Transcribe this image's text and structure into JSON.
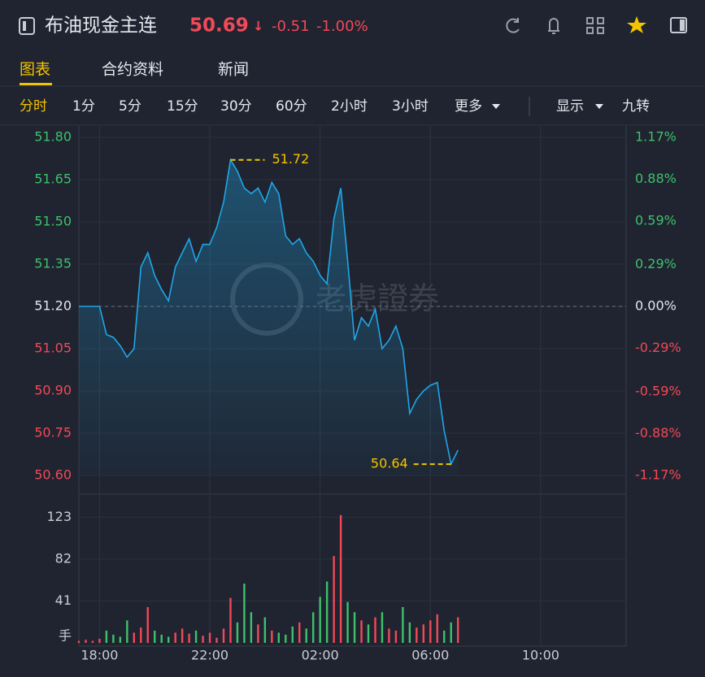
{
  "header": {
    "title": "布油现金主连",
    "price": "50.69",
    "arrow": "↓",
    "change": "-0.51",
    "change_pct": "-1.00%"
  },
  "tabs": [
    "图表",
    "合约资料",
    "新闻"
  ],
  "periods": [
    "分时",
    "1分",
    "5分",
    "15分",
    "30分",
    "60分",
    "2小时",
    "3小时",
    "更多"
  ],
  "toolbar_right": [
    "显示",
    "九转"
  ],
  "watermark": "老虎證券",
  "chart_data": [
    {
      "type": "line",
      "x": [
        -0.75,
        -0.5,
        -0.25,
        0,
        0.25,
        0.5,
        0.75,
        1,
        1.25,
        1.5,
        1.75,
        2,
        2.25,
        2.5,
        2.75,
        3,
        3.25,
        3.5,
        3.75,
        4,
        4.25,
        4.5,
        4.75,
        5,
        5.25,
        5.5,
        5.75,
        6,
        6.25,
        6.5,
        6.75,
        7,
        7.25,
        7.5,
        7.75,
        8,
        8.25,
        8.5,
        8.75,
        9,
        9.25,
        9.5,
        9.75,
        10,
        10.25,
        10.5,
        10.75,
        11,
        11.25,
        11.5,
        11.75,
        12,
        12.25,
        12.5,
        12.75,
        13
      ],
      "xlim": [
        -0.75,
        19.1
      ],
      "ylim": [
        50.6,
        51.8
      ],
      "yticks": [
        {
          "value": 51.8,
          "label": "51.80"
        },
        51.65,
        {
          "value": 51.5,
          "label": "51.50"
        },
        51.35,
        {
          "value": 51.2,
          "label": "51.20"
        },
        51.05,
        {
          "value": 50.9,
          "label": "50.90"
        },
        50.75,
        {
          "value": 50.6,
          "label": "50.60"
        }
      ],
      "y2lim": [
        -1.17,
        1.17
      ],
      "y2ticks": [
        {
          "value": 1.17,
          "label": "1.17%"
        },
        {
          "value": 0.88,
          "label": "0.88%"
        },
        {
          "value": 0.59,
          "label": "0.59%"
        },
        {
          "value": 0.29,
          "label": "0.29%"
        },
        {
          "value": 0,
          "label": "0.00%"
        },
        {
          "value": -0.29,
          "label": "-0.29%"
        },
        {
          "value": -0.59,
          "label": "-0.59%"
        },
        {
          "value": -0.88,
          "label": "-0.88%"
        },
        {
          "value": -1.17,
          "label": "-1.17%"
        }
      ],
      "reference_line": 51.2,
      "series": [
        {
          "color": "#1ea7e8",
          "values": [
            51.2,
            51.2,
            51.2,
            51.2,
            51.1,
            51.09,
            51.06,
            51.02,
            51.05,
            51.34,
            51.39,
            51.31,
            51.26,
            51.22,
            51.34,
            51.39,
            51.44,
            51.36,
            51.42,
            51.42,
            51.48,
            51.57,
            51.72,
            51.68,
            51.62,
            51.6,
            51.62,
            51.57,
            51.64,
            51.6,
            51.45,
            51.42,
            51.44,
            51.39,
            51.36,
            51.31,
            51.28,
            51.51,
            51.62,
            51.36,
            51.08,
            51.16,
            51.13,
            51.19,
            51.05,
            51.08,
            51.13,
            51.05,
            50.82,
            50.87,
            50.9,
            50.92,
            50.93,
            50.76,
            50.64,
            50.69
          ]
        }
      ],
      "annotations": [
        {
          "x": 4.75,
          "value": 51.72
        },
        {
          "x": 12.75,
          "value": 50.64
        }
      ],
      "grid": true
    },
    {
      "type": "bar",
      "x": [
        -0.75,
        -0.5,
        -0.25,
        0,
        0.25,
        0.5,
        0.75,
        1,
        1.25,
        1.5,
        1.75,
        2,
        2.25,
        2.5,
        2.75,
        3,
        3.25,
        3.5,
        3.75,
        4,
        4.25,
        4.5,
        4.75,
        5,
        5.25,
        5.5,
        5.75,
        6,
        6.25,
        6.5,
        6.75,
        7,
        7.25,
        7.5,
        7.75,
        8,
        8.25,
        8.5,
        8.75,
        9,
        9.25,
        9.5,
        9.75,
        10,
        10.25,
        10.5,
        10.75,
        11,
        11.25,
        11.5,
        11.75,
        12,
        12.25,
        12.5,
        12.75,
        13
      ],
      "xlim": [
        -0.75,
        19.1
      ],
      "xticks": [
        {
          "value": 0,
          "label": "18:00"
        },
        {
          "value": 4,
          "label": "22:00"
        },
        {
          "value": 8,
          "label": "02:00"
        },
        {
          "value": 12,
          "label": "06:00"
        },
        {
          "value": 16,
          "label": "10:00"
        }
      ],
      "ylim": [
        0,
        132
      ],
      "yticks": [
        {
          "value": 0,
          "label": "手"
        },
        41,
        82,
        123
      ],
      "series": [
        {
          "values": [
            2,
            3,
            2,
            4,
            12,
            8,
            6,
            22,
            10,
            15,
            35,
            12,
            8,
            6,
            10,
            14,
            9,
            12,
            7,
            10,
            5,
            14,
            44,
            20,
            58,
            30,
            18,
            25,
            12,
            10,
            8,
            16,
            20,
            14,
            30,
            45,
            60,
            85,
            125,
            40,
            30,
            22,
            18,
            25,
            30,
            14,
            12,
            35,
            20,
            15,
            18,
            22,
            28,
            12,
            20,
            25
          ]
        }
      ],
      "up_color": "#f24957",
      "down_color": "#3ec16a",
      "grid": true
    }
  ]
}
